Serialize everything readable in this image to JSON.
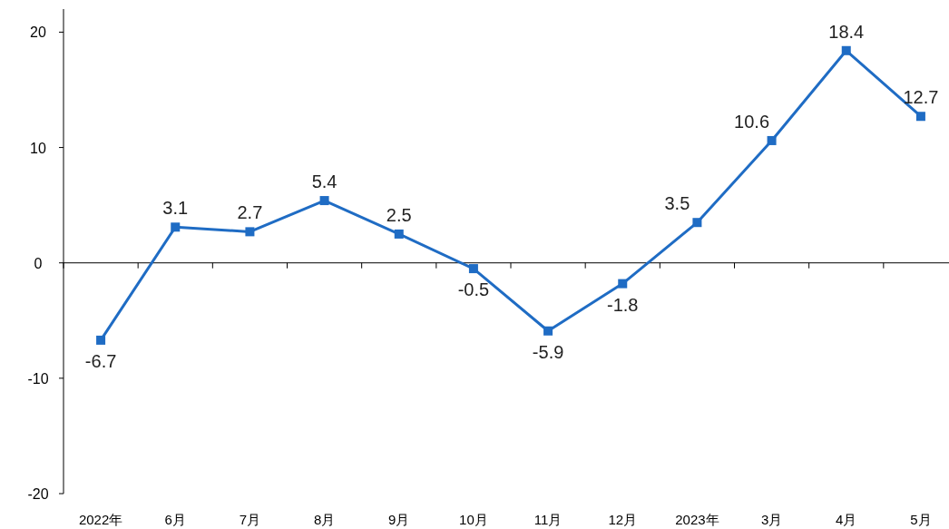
{
  "chart_data": {
    "type": "line",
    "categories": [
      "2022年",
      "6月",
      "7月",
      "8月",
      "9月",
      "10月",
      "11月",
      "12月",
      "2023年",
      "3月",
      "4月",
      "5月"
    ],
    "series": [
      {
        "color": "#1f6cc4",
        "values": [
          -6.7,
          3.1,
          2.7,
          5.4,
          2.5,
          -0.5,
          -5.9,
          -1.8,
          3.5,
          10.6,
          18.4,
          12.7
        ]
      }
    ],
    "ylim": [
      -20,
      22
    ],
    "yticks": [
      -20,
      -10,
      0,
      10,
      20
    ],
    "marker": "square",
    "line_style": "solid",
    "data_labels": true
  }
}
